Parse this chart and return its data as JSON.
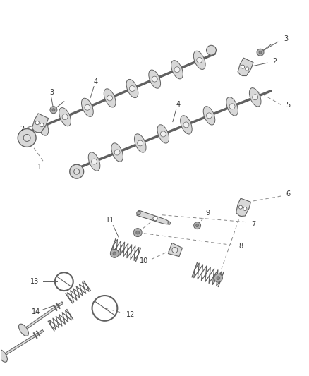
{
  "bg_color": "#ffffff",
  "lc": "#606060",
  "gray1": "#d8d8d8",
  "gray2": "#b0b0b0",
  "gray3": "#888888",
  "fig_w": 4.38,
  "fig_h": 5.33,
  "dpi": 100
}
